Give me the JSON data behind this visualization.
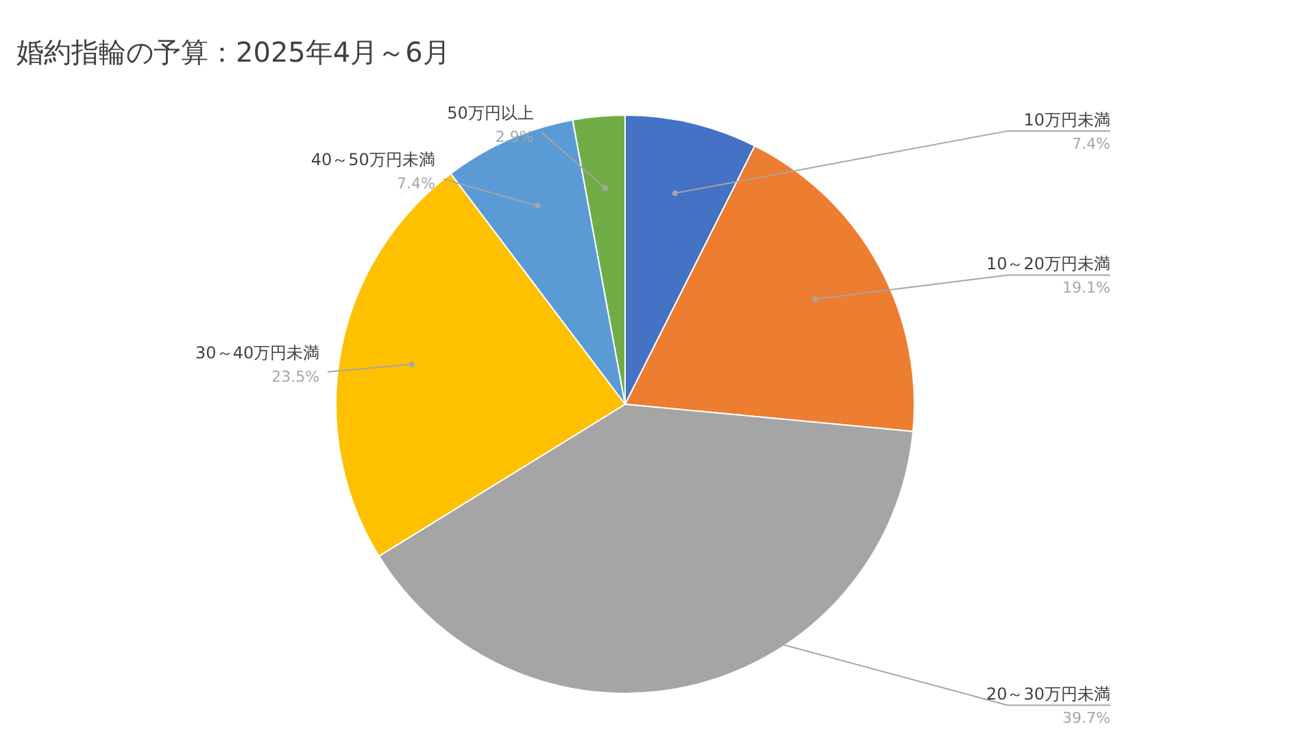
{
  "chart_data": {
    "type": "pie",
    "title": "婚約指輪の予算：2025年4月～6月",
    "categories": [
      "10万円未満",
      "10～20万円未満",
      "20～30万円未満",
      "30～40万円未満",
      "40～50万円未満",
      "50万円以上"
    ],
    "values": [
      7.4,
      19.1,
      39.7,
      23.5,
      7.4,
      2.9
    ],
    "colors": [
      "#4472c4",
      "#ed7d31",
      "#a5a5a5",
      "#ffc000",
      "#5b9bd5",
      "#70ad47"
    ],
    "value_labels": [
      "7.4%",
      "19.1%",
      "39.7%",
      "23.5%",
      "7.4%",
      "2.9%"
    ],
    "legend": false
  }
}
